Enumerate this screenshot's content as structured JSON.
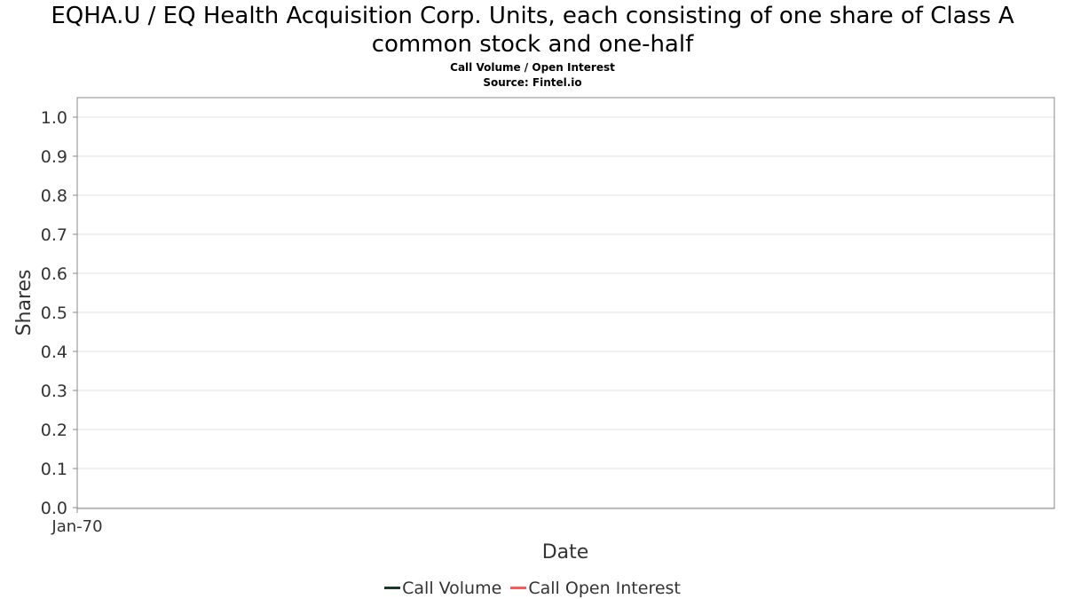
{
  "chart_data": {
    "type": "line",
    "title": "EQHA.U / EQ Health Acquisition Corp. Units, each consisting of one share of Class A",
    "title_line2": "common stock and one-half",
    "subtitle": "Call Volume / Open Interest",
    "source": "Source: Fintel.io",
    "xlabel": "Date",
    "ylabel": "Shares",
    "ylim": [
      0,
      1.0
    ],
    "yticks": [
      "0.0",
      "0.1",
      "0.2",
      "0.3",
      "0.4",
      "0.5",
      "0.6",
      "0.7",
      "0.8",
      "0.9",
      "1.0"
    ],
    "xticks": [
      "Jan-70"
    ],
    "grid": true,
    "legend_position": "bottom",
    "series": [
      {
        "name": "Call Volume",
        "color": "#1a3a2a",
        "values": []
      },
      {
        "name": "Call Open Interest",
        "color": "#ff5a5a",
        "values": []
      }
    ]
  }
}
